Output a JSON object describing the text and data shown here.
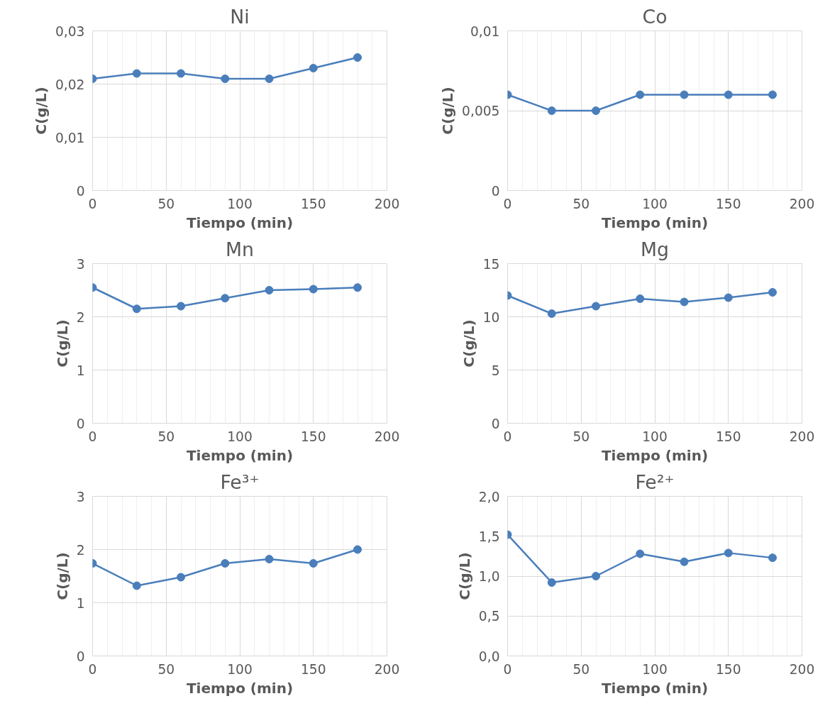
{
  "chart_data": [
    {
      "type": "line",
      "title": "Ni",
      "xlabel": "Tiempo (min)",
      "ylabel": "C(g/L)",
      "x": [
        0,
        30,
        60,
        90,
        120,
        150,
        180
      ],
      "series": [
        {
          "color": "#4a7ebb",
          "values": [
            0.021,
            0.022,
            0.022,
            0.021,
            0.021,
            0.023,
            0.025
          ]
        }
      ],
      "xlim": [
        0,
        200
      ],
      "xticks": [
        0,
        50,
        100,
        150,
        200
      ],
      "ylim": [
        0,
        0.03
      ],
      "yticks": [
        0,
        {
          "value": 0.01,
          "label": "0,01"
        },
        {
          "value": 0.02,
          "label": "0,02"
        },
        {
          "value": 0.03,
          "label": "0,03"
        }
      ],
      "grid": true,
      "marker": "circle",
      "line_style": "solid"
    },
    {
      "type": "line",
      "title": "Co",
      "xlabel": "Tiempo (min)",
      "ylabel": "C(g/L)",
      "x": [
        0,
        30,
        60,
        90,
        120,
        150,
        180
      ],
      "series": [
        {
          "color": "#4a7ebb",
          "values": [
            0.006,
            0.005,
            0.005,
            0.006,
            0.006,
            0.006,
            0.006
          ]
        }
      ],
      "xlim": [
        0,
        200
      ],
      "xticks": [
        0,
        50,
        100,
        150,
        200
      ],
      "ylim": [
        0,
        0.01
      ],
      "yticks": [
        0,
        {
          "value": 0.005,
          "label": "0,005"
        },
        {
          "value": 0.01,
          "label": "0,01"
        }
      ],
      "grid": true,
      "marker": "circle",
      "line_style": "solid"
    },
    {
      "type": "line",
      "title": "Mn",
      "xlabel": "Tiempo (min)",
      "ylabel": "C(g/L)",
      "x": [
        0,
        30,
        60,
        90,
        120,
        150,
        180
      ],
      "series": [
        {
          "color": "#4a7ebb",
          "values": [
            2.55,
            2.15,
            2.2,
            2.35,
            2.5,
            2.52,
            2.55
          ]
        }
      ],
      "xlim": [
        0,
        200
      ],
      "xticks": [
        0,
        50,
        100,
        150,
        200
      ],
      "ylim": [
        0,
        3
      ],
      "yticks": [
        0,
        1,
        2,
        3
      ],
      "grid": true,
      "marker": "circle",
      "line_style": "solid"
    },
    {
      "type": "line",
      "title": "Mg",
      "xlabel": "Tiempo (min)",
      "ylabel": "C(g/L)",
      "x": [
        0,
        30,
        60,
        90,
        120,
        150,
        180
      ],
      "series": [
        {
          "color": "#4a7ebb",
          "values": [
            12,
            10.3,
            11,
            11.7,
            11.4,
            11.8,
            12.3
          ]
        }
      ],
      "xlim": [
        0,
        200
      ],
      "xticks": [
        0,
        50,
        100,
        150,
        200
      ],
      "ylim": [
        0,
        15
      ],
      "yticks": [
        0,
        5,
        10,
        15
      ],
      "grid": true,
      "marker": "circle",
      "line_style": "solid"
    },
    {
      "type": "line",
      "title": "Fe³⁺",
      "xlabel": "Tiempo (min)",
      "ylabel": "C(g/L)",
      "x": [
        0,
        30,
        60,
        90,
        120,
        150,
        180
      ],
      "series": [
        {
          "color": "#4a7ebb",
          "values": [
            1.74,
            1.32,
            1.48,
            1.74,
            1.82,
            1.74,
            2.0
          ]
        }
      ],
      "xlim": [
        0,
        200
      ],
      "xticks": [
        0,
        50,
        100,
        150,
        200
      ],
      "ylim": [
        0,
        3
      ],
      "yticks": [
        0,
        1,
        2,
        3
      ],
      "grid": true,
      "marker": "circle",
      "line_style": "solid"
    },
    {
      "type": "line",
      "title": "Fe²⁺",
      "xlabel": "Tiempo (min)",
      "ylabel": "C(g/L)",
      "x": [
        0,
        30,
        60,
        90,
        120,
        150,
        180
      ],
      "series": [
        {
          "color": "#4a7ebb",
          "values": [
            1.52,
            0.92,
            1.0,
            1.28,
            1.18,
            1.29,
            1.23
          ]
        }
      ],
      "xlim": [
        0,
        200
      ],
      "xticks": [
        0,
        50,
        100,
        150,
        200
      ],
      "ylim": [
        0,
        2
      ],
      "yticks": [
        {
          "value": 0,
          "label": "0,0"
        },
        {
          "value": 0.5,
          "label": "0,5"
        },
        {
          "value": 1,
          "label": "1,0"
        },
        {
          "value": 1.5,
          "label": "1,5"
        },
        {
          "value": 2,
          "label": "2,0"
        }
      ],
      "grid": true,
      "marker": "circle",
      "line_style": "solid"
    }
  ]
}
